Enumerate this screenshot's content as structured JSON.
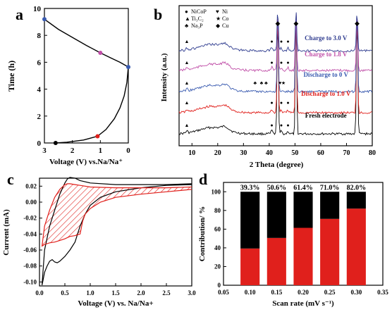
{
  "panel_labels": {
    "a": "a",
    "b": "b",
    "c": "c",
    "d": "d"
  },
  "colors": {
    "black": "#000000",
    "red": "#e0201c",
    "blue": "#3a5bb0",
    "magenta": "#c04fa8",
    "dark_blue": "#2f3c8f"
  },
  "chart_data": [
    {
      "panel": "a",
      "type": "line",
      "xlabel": "Voltage (V) vs.Na/Na⁺",
      "ylabel": "Time (h)",
      "xlim": [
        3,
        0
      ],
      "ylim": [
        0,
        10
      ],
      "xticks": [
        "3",
        "2",
        "1",
        "0"
      ],
      "yticks": [
        "0",
        "2",
        "4",
        "6",
        "8",
        "10"
      ],
      "series": [
        {
          "color": "#000000",
          "x": [
            2.6,
            2.2,
            1.6,
            1.1,
            0.8,
            0.5,
            0.3,
            0.15,
            0.05,
            0.0
          ],
          "y": [
            0.0,
            0.06,
            0.22,
            0.5,
            1.0,
            1.8,
            2.6,
            3.5,
            4.5,
            5.65
          ]
        },
        {
          "color": "#000000",
          "x": [
            0.0,
            0.3,
            0.6,
            1.0,
            1.5,
            2.0,
            2.5,
            2.8,
            3.0
          ],
          "y": [
            5.65,
            6.0,
            6.3,
            6.7,
            7.25,
            7.85,
            8.45,
            8.9,
            9.2
          ]
        }
      ],
      "markers": [
        {
          "x": 2.6,
          "y": 0.0,
          "color": "#000000"
        },
        {
          "x": 1.1,
          "y": 0.5,
          "color": "#e0201c"
        },
        {
          "x": 0.0,
          "y": 5.65,
          "color": "#3a5bb0"
        },
        {
          "x": 1.0,
          "y": 6.7,
          "color": "#c04fa8"
        },
        {
          "x": 3.0,
          "y": 9.2,
          "color": "#3a5bb0"
        }
      ]
    },
    {
      "panel": "b",
      "type": "line",
      "xlabel": "2 Theta (degree)",
      "ylabel": "Intensity (a.u.)",
      "xlim": [
        5,
        80
      ],
      "xticks": [
        "10",
        "20",
        "30",
        "40",
        "50",
        "60",
        "70",
        "80"
      ],
      "legend": [
        {
          "symbol": "●",
          "label": "NiCoP"
        },
        {
          "symbol": "♥",
          "label": "Ni"
        },
        {
          "symbol": "▲",
          "label": "Ti₃C₂"
        },
        {
          "symbol": "★",
          "label": "Co"
        },
        {
          "symbol": "♣",
          "label": "Na₃P"
        },
        {
          "symbol": "◆",
          "label": "Cu"
        }
      ],
      "series": [
        {
          "name": "Fresh electrode",
          "color": "#000000",
          "offset": 0.0,
          "label_color": "#000000"
        },
        {
          "name": "Discharge to 1.0 V",
          "color": "#e0201c",
          "offset": 1.0,
          "label_color": "#e0201c"
        },
        {
          "name": "Discharge to 0 V",
          "color": "#3a5bb0",
          "offset": 2.0,
          "label_color": "#3a5bb0"
        },
        {
          "name": "Charge to 1.8 V",
          "color": "#c04fa8",
          "offset": 3.0,
          "label_color": "#c04fa8"
        },
        {
          "name": "Charge to 3.0 V",
          "color": "#2f3c8f",
          "offset": 4.0,
          "label_color": "#2f3c8f"
        }
      ],
      "peaks": [
        {
          "x": 43.3,
          "height": 5.0,
          "symbol": "◆"
        },
        {
          "x": 50.4,
          "height": 5.0,
          "symbol": "◆"
        },
        {
          "x": 74.1,
          "height": 5.0,
          "symbol": "◆"
        }
      ],
      "phase_marks": [
        {
          "x": 8.0,
          "symbol": "▲"
        },
        {
          "x": 41.0,
          "symbol": "●"
        },
        {
          "x": 44.7,
          "symbol": "●"
        },
        {
          "x": 47.3,
          "symbol": "●"
        },
        {
          "x": 34.5,
          "symbol": "♣"
        },
        {
          "x": 37.0,
          "symbol": "♣"
        },
        {
          "x": 38.8,
          "symbol": "♣"
        },
        {
          "x": 44.2,
          "symbol": "♥"
        },
        {
          "x": 45.5,
          "symbol": "★"
        }
      ]
    },
    {
      "panel": "c",
      "type": "line",
      "xlabel": "Voltage (V) vs. Na/Na+",
      "ylabel": "Current (mA)",
      "xlim": [
        0.0,
        3.0
      ],
      "ylim": [
        -0.1,
        0.02
      ],
      "xticks": [
        "0.0",
        "0.5",
        "1.0",
        "1.5",
        "2.0",
        "2.5",
        "3.0"
      ],
      "yticks": [
        "0.02",
        "0.00",
        "-0.02",
        "-0.04",
        "-0.06",
        "-0.08",
        "-0.10"
      ],
      "series": [
        {
          "color": "#000000",
          "x": [
            3.0,
            2.5,
            2.0,
            1.5,
            1.2,
            1.0,
            0.9,
            0.8,
            0.7,
            0.6,
            0.5,
            0.4,
            0.35,
            0.3,
            0.25,
            0.2,
            0.15,
            0.1,
            0.07,
            0.05,
            0.1,
            0.2,
            0.3,
            0.4,
            0.5,
            0.55,
            0.6,
            0.7,
            0.8,
            1.0,
            1.5,
            2.0,
            2.5,
            3.0
          ],
          "y": [
            0.022,
            0.021,
            0.018,
            0.013,
            0.006,
            -0.004,
            -0.015,
            -0.03,
            -0.05,
            -0.06,
            -0.068,
            -0.074,
            -0.076,
            -0.075,
            -0.072,
            -0.074,
            -0.08,
            -0.088,
            -0.098,
            -0.104,
            -0.06,
            -0.03,
            -0.01,
            0.01,
            0.024,
            0.029,
            0.031,
            0.03,
            0.027,
            0.024,
            0.022,
            0.022,
            0.022,
            0.023
          ]
        },
        {
          "color": "#e0201c",
          "x": [
            3.0,
            2.5,
            2.0,
            1.5,
            1.2,
            1.0,
            0.9,
            0.85,
            0.8,
            0.7,
            0.6,
            0.5,
            0.4,
            0.3,
            0.2,
            0.1,
            0.05,
            0.1,
            0.2,
            0.3,
            0.4,
            0.5,
            0.55,
            0.6,
            0.7,
            0.8,
            1.0,
            1.5,
            2.0,
            2.5,
            3.0
          ],
          "y": [
            0.016,
            0.013,
            0.01,
            0.006,
            0.0,
            -0.008,
            -0.015,
            -0.024,
            -0.04,
            -0.042,
            -0.043,
            -0.046,
            -0.048,
            -0.05,
            -0.051,
            -0.053,
            -0.055,
            -0.03,
            -0.01,
            0.006,
            0.016,
            0.022,
            0.023,
            0.023,
            0.022,
            0.021,
            0.019,
            0.018,
            0.018,
            0.018,
            0.019
          ]
        }
      ]
    },
    {
      "panel": "d",
      "type": "bar",
      "xlabel": "Scan rate (mV s⁻¹)",
      "ylabel": "Contribution/ %",
      "xlim": [
        0.05,
        0.35
      ],
      "ylim": [
        0,
        100
      ],
      "xticks": [
        "0.05",
        "0.10",
        "0.15",
        "0.20",
        "0.25",
        "0.30",
        "0.35"
      ],
      "yticks": [
        "0",
        "20",
        "40",
        "60",
        "80",
        "100"
      ],
      "categories": [
        0.1,
        0.15,
        0.2,
        0.25,
        0.3
      ],
      "series": [
        {
          "color": "#e0201c",
          "values": [
            39.3,
            50.6,
            61.4,
            71.0,
            82.0
          ]
        },
        {
          "color": "#000000",
          "values": [
            60.7,
            49.4,
            38.6,
            29.0,
            18.0
          ]
        }
      ],
      "data_labels": [
        "39.3%",
        "50.6%",
        "61.4%",
        "71.0%",
        "82.0%"
      ]
    }
  ]
}
